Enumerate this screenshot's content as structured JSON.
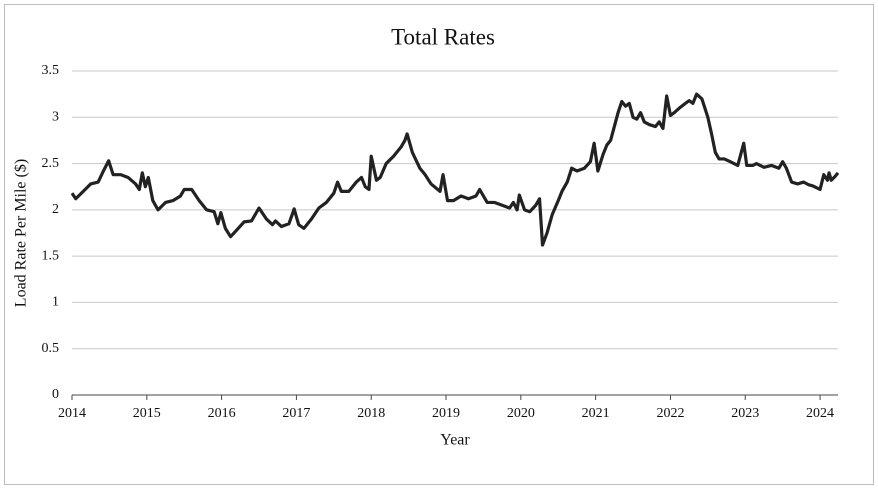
{
  "chart_data": {
    "type": "line",
    "title": "Total Rates",
    "x_label": "Year",
    "y_label": "Load Rate Per Mile ($)",
    "color": "#222222",
    "grid": true,
    "xlim": [
      2014,
      2024.24
    ],
    "xticks": [
      2014,
      2015,
      2016,
      2017,
      2018,
      2019,
      2020,
      2021,
      2022,
      2023,
      2024
    ],
    "ylim": [
      0,
      3.5
    ],
    "yticks": [
      0,
      0.5,
      1,
      1.5,
      2,
      2.5,
      3,
      3.5
    ],
    "x": [
      2014.0,
      2014.05,
      2014.15,
      2014.25,
      2014.35,
      2014.42,
      2014.49,
      2014.55,
      2014.65,
      2014.75,
      2014.85,
      2014.9,
      2014.94,
      2014.98,
      2015.02,
      2015.08,
      2015.15,
      2015.25,
      2015.35,
      2015.45,
      2015.5,
      2015.6,
      2015.7,
      2015.8,
      2015.9,
      2015.95,
      2015.99,
      2016.05,
      2016.12,
      2016.2,
      2016.3,
      2016.4,
      2016.5,
      2016.6,
      2016.68,
      2016.72,
      2016.8,
      2016.9,
      2016.97,
      2017.03,
      2017.1,
      2017.2,
      2017.3,
      2017.4,
      2017.5,
      2017.55,
      2017.6,
      2017.7,
      2017.8,
      2017.87,
      2017.92,
      2017.97,
      2018.0,
      2018.07,
      2018.12,
      2018.2,
      2018.3,
      2018.4,
      2018.45,
      2018.48,
      2018.55,
      2018.65,
      2018.72,
      2018.8,
      2018.92,
      2018.96,
      2019.02,
      2019.1,
      2019.2,
      2019.3,
      2019.4,
      2019.45,
      2019.55,
      2019.65,
      2019.75,
      2019.85,
      2019.9,
      2019.95,
      2019.98,
      2020.05,
      2020.12,
      2020.2,
      2020.25,
      2020.29,
      2020.35,
      2020.42,
      2020.5,
      2020.55,
      2020.62,
      2020.68,
      2020.75,
      2020.85,
      2020.93,
      2020.98,
      2021.03,
      2021.1,
      2021.15,
      2021.2,
      2021.25,
      2021.3,
      2021.35,
      2021.4,
      2021.45,
      2021.5,
      2021.55,
      2021.6,
      2021.65,
      2021.72,
      2021.8,
      2021.85,
      2021.9,
      2021.95,
      2022.0,
      2022.05,
      2022.12,
      2022.2,
      2022.25,
      2022.3,
      2022.35,
      2022.42,
      2022.5,
      2022.55,
      2022.6,
      2022.65,
      2022.72,
      2022.8,
      2022.9,
      2022.98,
      2023.02,
      2023.1,
      2023.15,
      2023.25,
      2023.35,
      2023.45,
      2023.5,
      2023.55,
      2023.62,
      2023.7,
      2023.78,
      2023.85,
      2023.9,
      2024.0,
      2024.05,
      2024.1,
      2024.12,
      2024.15,
      2024.2,
      2024.24
    ],
    "values": [
      2.18,
      2.12,
      2.2,
      2.28,
      2.3,
      2.42,
      2.53,
      2.38,
      2.38,
      2.35,
      2.28,
      2.22,
      2.4,
      2.25,
      2.35,
      2.1,
      2.0,
      2.08,
      2.1,
      2.15,
      2.22,
      2.22,
      2.1,
      2.0,
      1.98,
      1.85,
      1.97,
      1.8,
      1.71,
      1.78,
      1.87,
      1.88,
      2.02,
      1.9,
      1.84,
      1.88,
      1.82,
      1.85,
      2.01,
      1.84,
      1.8,
      1.9,
      2.02,
      2.08,
      2.18,
      2.3,
      2.2,
      2.2,
      2.3,
      2.35,
      2.25,
      2.22,
      2.58,
      2.32,
      2.35,
      2.5,
      2.58,
      2.68,
      2.75,
      2.82,
      2.62,
      2.45,
      2.38,
      2.28,
      2.2,
      2.38,
      2.1,
      2.1,
      2.15,
      2.12,
      2.15,
      2.22,
      2.08,
      2.08,
      2.05,
      2.02,
      2.08,
      2.0,
      2.16,
      2.0,
      1.98,
      2.05,
      2.12,
      1.62,
      1.75,
      1.95,
      2.1,
      2.2,
      2.3,
      2.45,
      2.42,
      2.45,
      2.52,
      2.72,
      2.42,
      2.6,
      2.7,
      2.75,
      2.9,
      3.05,
      3.17,
      3.12,
      3.15,
      3.0,
      2.98,
      3.05,
      2.95,
      2.92,
      2.9,
      2.95,
      2.88,
      3.23,
      3.02,
      3.05,
      3.1,
      3.15,
      3.18,
      3.15,
      3.25,
      3.2,
      3.0,
      2.82,
      2.62,
      2.55,
      2.55,
      2.52,
      2.48,
      2.72,
      2.48,
      2.48,
      2.5,
      2.46,
      2.48,
      2.45,
      2.52,
      2.45,
      2.3,
      2.28,
      2.3,
      2.27,
      2.26,
      2.22,
      2.38,
      2.32,
      2.4,
      2.32,
      2.36,
      2.4
    ]
  }
}
